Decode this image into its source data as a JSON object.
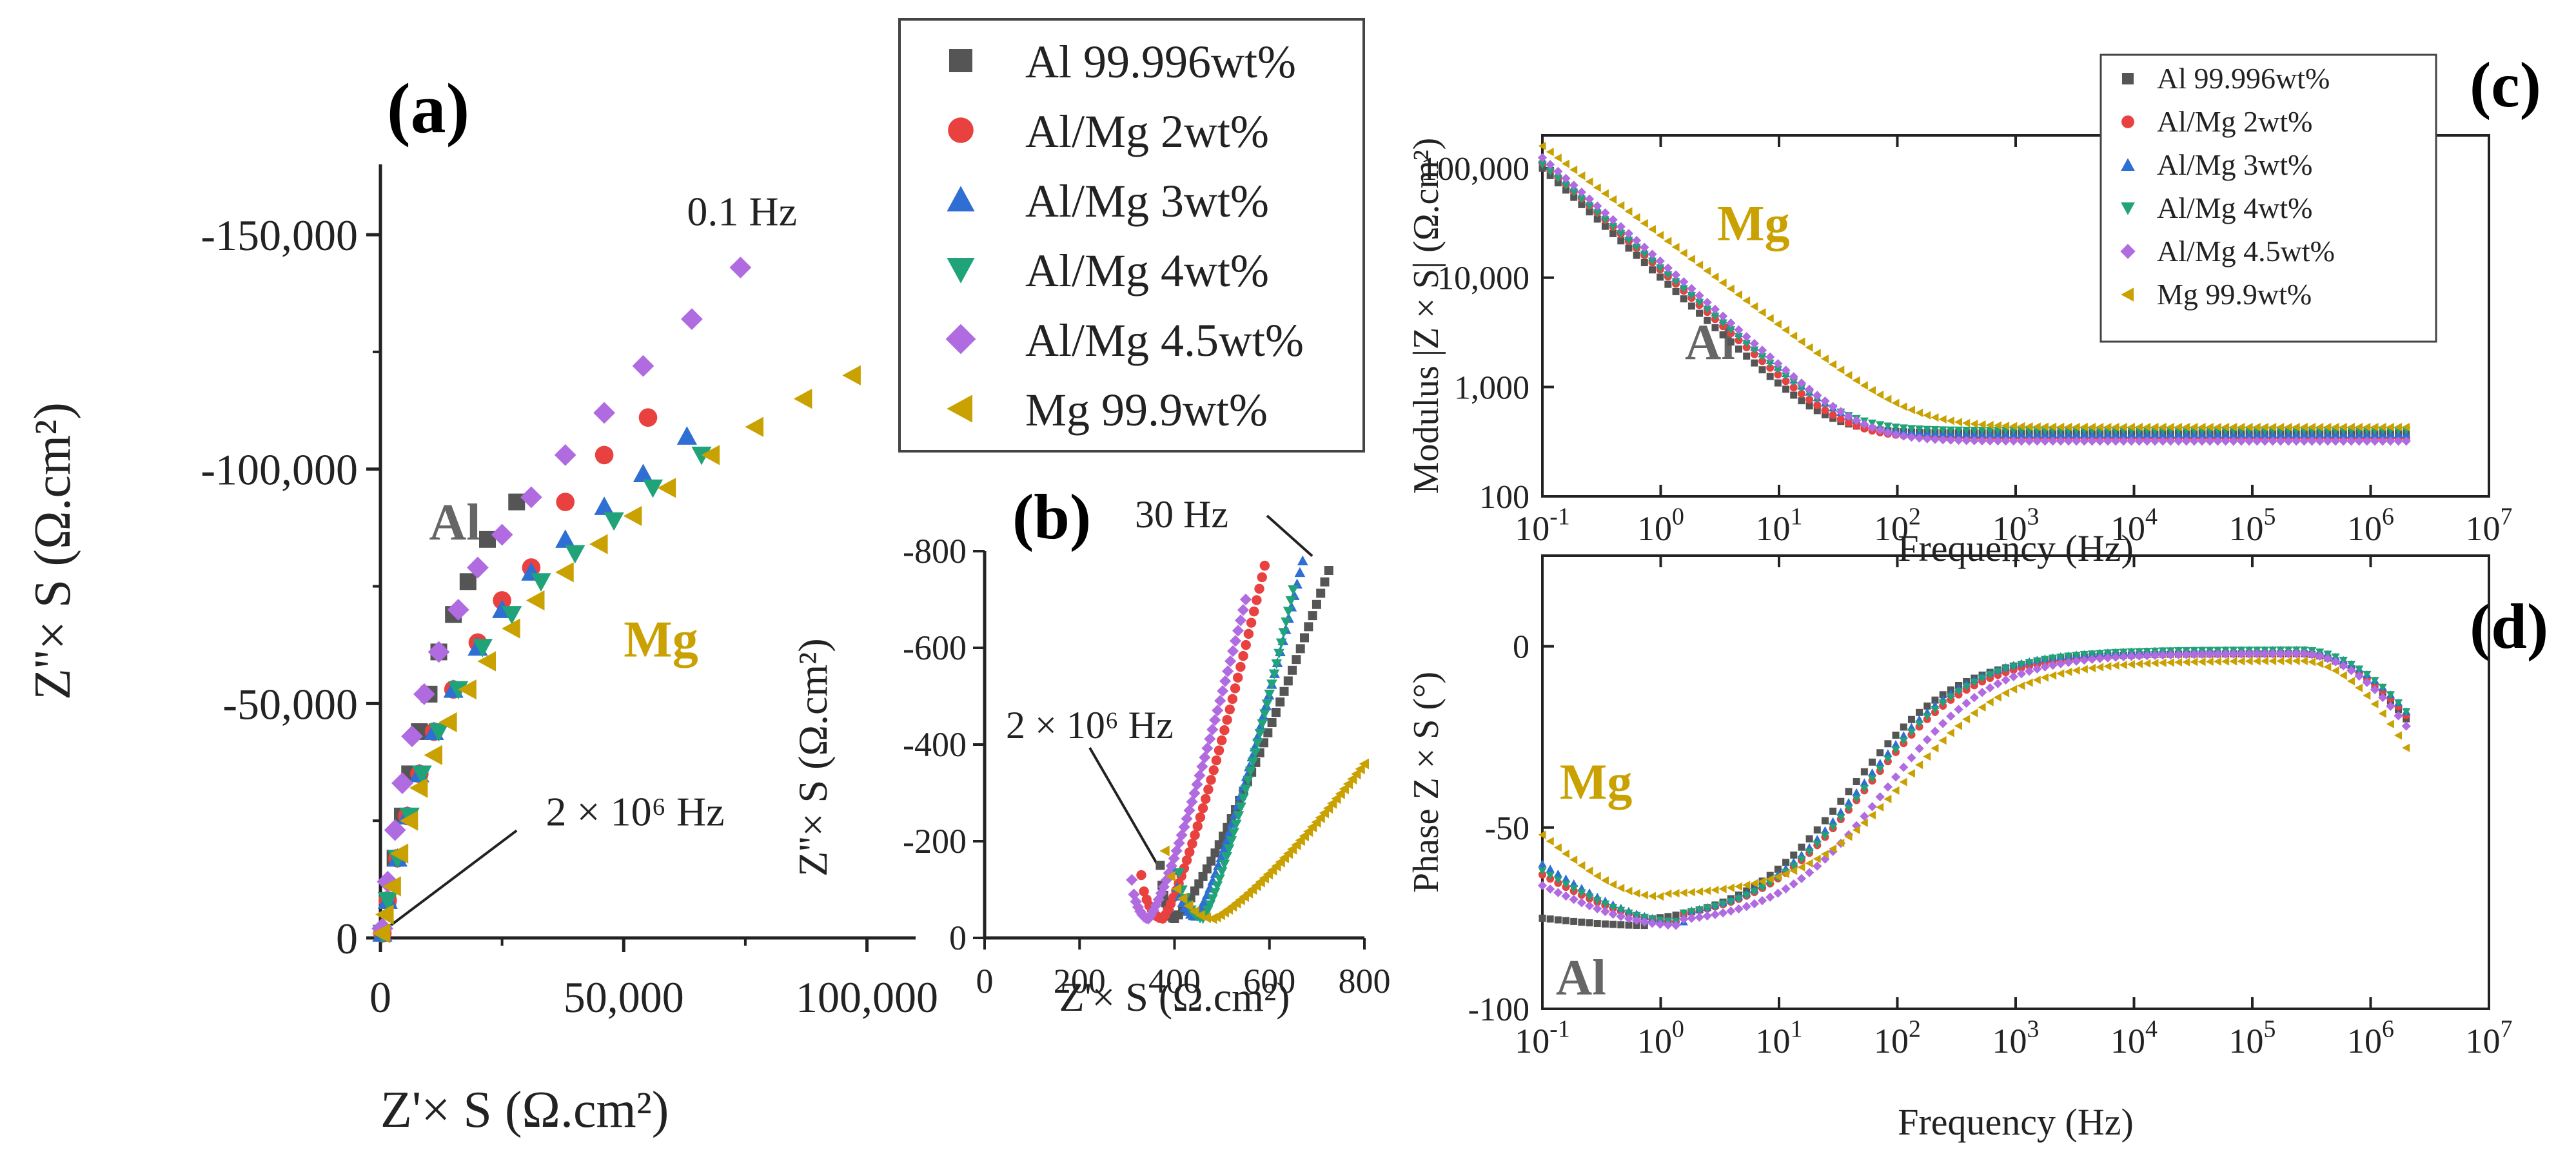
{
  "figure": {
    "legend_main": [
      {
        "label": "Al 99.996wt%",
        "color": "#555555",
        "marker": "square"
      },
      {
        "label": "Al/Mg 2wt%",
        "color": "#e8413f",
        "marker": "circle"
      },
      {
        "label": "Al/Mg 3wt%",
        "color": "#2f6fd3",
        "marker": "triangle-up"
      },
      {
        "label": "Al/Mg 4wt%",
        "color": "#21a37a",
        "marker": "triangle-down"
      },
      {
        "label": "Al/Mg 4.5wt%",
        "color": "#b06be0",
        "marker": "diamond"
      },
      {
        "label": "Mg 99.9wt%",
        "color": "#c9a100",
        "marker": "triangle-left"
      }
    ]
  },
  "chart_data": [
    {
      "panel": "(a)",
      "type": "scatter",
      "xlabel": "Z'× S (Ω.cm²)",
      "ylabel": "Z''× S (Ω.cm²)",
      "xlim": [
        0,
        110000
      ],
      "ylim": [
        0,
        -165000
      ],
      "xticks": [
        {
          "v": 0,
          "t": "0"
        },
        {
          "v": 50000,
          "t": "50,000"
        },
        {
          "v": 100000,
          "t": "100,000"
        }
      ],
      "yticks": [
        {
          "v": 0,
          "t": "0"
        },
        {
          "v": -50000,
          "t": "-50,000"
        },
        {
          "v": -100000,
          "t": "-100,000"
        },
        {
          "v": -150000,
          "t": "-150,000"
        }
      ],
      "annotations": [
        {
          "text": "0.1 Hz",
          "x": 63000,
          "y": -152000
        },
        {
          "text": "2 × 10⁶ Hz",
          "x": 34000,
          "y": -24000
        },
        {
          "text": "Al",
          "x": 10000,
          "y": -85000,
          "color": "#666666"
        },
        {
          "text": "Mg",
          "x": 50000,
          "y": -60000,
          "color": "#c9a100"
        }
      ],
      "series": [
        {
          "name": "Al 99.996wt%",
          "points": [
            [
              28000,
              -93000
            ],
            [
              22000,
              -85000
            ],
            [
              18000,
              -76000
            ],
            [
              15000,
              -69000
            ],
            [
              12000,
              -61000
            ],
            [
              10000,
              -52000
            ],
            [
              8000,
              -44000
            ],
            [
              6000,
              -35000
            ],
            [
              4500,
              -26000
            ],
            [
              3000,
              -17000
            ],
            [
              1500,
              -8000
            ],
            [
              400,
              -1000
            ]
          ]
        },
        {
          "name": "Al/Mg 2wt%",
          "points": [
            [
              55000,
              -111000
            ],
            [
              46000,
              -103000
            ],
            [
              38000,
              -93000
            ],
            [
              31000,
              -79000
            ],
            [
              25000,
              -72000
            ],
            [
              20000,
              -63000
            ],
            [
              15000,
              -53000
            ],
            [
              11000,
              -44000
            ],
            [
              8000,
              -35000
            ],
            [
              5500,
              -26000
            ],
            [
              3500,
              -17000
            ],
            [
              1500,
              -8000
            ],
            [
              400,
              -1000
            ]
          ]
        },
        {
          "name": "Al/Mg 3wt%",
          "points": [
            [
              63000,
              -107000
            ],
            [
              54000,
              -99000
            ],
            [
              46000,
              -92000
            ],
            [
              38000,
              -85000
            ],
            [
              31000,
              -78000
            ],
            [
              25000,
              -70000
            ],
            [
              20000,
              -62000
            ],
            [
              15000,
              -53000
            ],
            [
              11000,
              -44000
            ],
            [
              8000,
              -35000
            ],
            [
              5500,
              -26000
            ],
            [
              3500,
              -17000
            ],
            [
              1500,
              -8000
            ],
            [
              400,
              -1000
            ]
          ]
        },
        {
          "name": "Al/Mg 4wt%",
          "points": [
            [
              66000,
              -103000
            ],
            [
              56000,
              -96000
            ],
            [
              48000,
              -89000
            ],
            [
              40000,
              -82000
            ],
            [
              33000,
              -76000
            ],
            [
              27000,
              -69000
            ],
            [
              21000,
              -62000
            ],
            [
              16000,
              -53000
            ],
            [
              12000,
              -44000
            ],
            [
              8500,
              -35000
            ],
            [
              6000,
              -26000
            ],
            [
              3500,
              -17000
            ],
            [
              1500,
              -8000
            ],
            [
              400,
              -1000
            ]
          ]
        },
        {
          "name": "Al/Mg 4.5wt%",
          "points": [
            [
              74000,
              -143000
            ],
            [
              64000,
              -132000
            ],
            [
              54000,
              -122000
            ],
            [
              46000,
              -112000
            ],
            [
              38000,
              -103000
            ],
            [
              31000,
              -94000
            ],
            [
              25000,
              -86000
            ],
            [
              20000,
              -79000
            ],
            [
              16000,
              -70000
            ],
            [
              12000,
              -61000
            ],
            [
              9000,
              -52000
            ],
            [
              6500,
              -43000
            ],
            [
              4500,
              -33000
            ],
            [
              3000,
              -23000
            ],
            [
              1500,
              -12000
            ],
            [
              400,
              -2000
            ]
          ]
        },
        {
          "name": "Mg 99.9wt%",
          "points": [
            [
              97000,
              -120000
            ],
            [
              87000,
              -115000
            ],
            [
              77000,
              -109000
            ],
            [
              68000,
              -103000
            ],
            [
              59000,
              -96000
            ],
            [
              52000,
              -90000
            ],
            [
              45000,
              -84000
            ],
            [
              38000,
              -78000
            ],
            [
              32000,
              -72000
            ],
            [
              27000,
              -66000
            ],
            [
              22000,
              -59000
            ],
            [
              18000,
              -53000
            ],
            [
              14000,
              -46000
            ],
            [
              11000,
              -39000
            ],
            [
              8000,
              -32000
            ],
            [
              6000,
              -25000
            ],
            [
              4000,
              -18000
            ],
            [
              2500,
              -11000
            ],
            [
              1000,
              -5000
            ],
            [
              300,
              -1000
            ]
          ]
        }
      ]
    },
    {
      "panel": "(b)",
      "type": "scatter",
      "xlabel": "Z'× S (Ω.cm²)",
      "ylabel": "Z''× S (Ω.cm²)",
      "xlim": [
        0,
        800
      ],
      "ylim": [
        0,
        -800
      ],
      "xticks": [
        {
          "v": 0,
          "t": "0"
        },
        {
          "v": 200,
          "t": "200"
        },
        {
          "v": 400,
          "t": "400"
        },
        {
          "v": 600,
          "t": "600"
        },
        {
          "v": 800,
          "t": "800"
        }
      ],
      "yticks": [
        {
          "v": 0,
          "t": "0"
        },
        {
          "v": -200,
          "t": "-200"
        },
        {
          "v": -400,
          "t": "-400"
        },
        {
          "v": -600,
          "t": "-600"
        },
        {
          "v": -800,
          "t": "-800"
        }
      ],
      "annotations": [
        {
          "text": "30 Hz",
          "x": 560,
          "y": -840
        },
        {
          "text": "2 × 10⁶ Hz",
          "x": 80,
          "y": -370
        }
      ],
      "series": [
        {
          "name": "Al 99.996wt%",
          "start": [
            370,
            -150
          ],
          "min": [
            400,
            -40
          ],
          "end": [
            725,
            -760
          ]
        },
        {
          "name": "Al/Mg 2wt%",
          "start": [
            330,
            -130
          ],
          "min": [
            375,
            -40
          ],
          "end": [
            590,
            -770
          ]
        },
        {
          "name": "Al/Mg 3wt%",
          "start": [
            400,
            -140
          ],
          "min": [
            445,
            -45
          ],
          "end": [
            670,
            -780
          ]
        },
        {
          "name": "Al/Mg 4wt%",
          "start": [
            410,
            -135
          ],
          "min": [
            460,
            -40
          ],
          "end": [
            650,
            -720
          ]
        },
        {
          "name": "Al/Mg 4.5wt%",
          "start": [
            310,
            -120
          ],
          "min": [
            345,
            -40
          ],
          "end": [
            550,
            -700
          ]
        },
        {
          "name": "Mg 99.9wt%",
          "start": [
            380,
            -180
          ],
          "min": [
            480,
            -40
          ],
          "end": [
            800,
            -360
          ]
        }
      ]
    },
    {
      "panel": "(c)",
      "type": "line",
      "xlabel": "Frequency (Hz)",
      "ylabel": "Modulus |Z × S| (Ω.cm²)",
      "x_scale": "log",
      "y_scale": "log",
      "xlim": [
        0.1,
        10000000
      ],
      "ylim": [
        100,
        200000
      ],
      "xticks": [
        {
          "v": 0.1,
          "t": "10⁻¹"
        },
        {
          "v": 1,
          "t": "10⁰"
        },
        {
          "v": 10,
          "t": "10¹"
        },
        {
          "v": 100,
          "t": "10²"
        },
        {
          "v": 1000,
          "t": "10³"
        },
        {
          "v": 10000,
          "t": "10⁴"
        },
        {
          "v": 100000,
          "t": "10⁵"
        },
        {
          "v": 1000000,
          "t": "10⁶"
        },
        {
          "v": 10000000,
          "t": "10⁷"
        }
      ],
      "yticks": [
        {
          "v": 100,
          "t": "100"
        },
        {
          "v": 1000,
          "t": "1,000"
        },
        {
          "v": 10000,
          "t": "10,000"
        },
        {
          "v": 100000,
          "t": "100,000"
        }
      ],
      "annotations": [
        {
          "text": "Mg",
          "x": 3,
          "y": 22000,
          "color": "#c9a100"
        },
        {
          "text": "Al",
          "x": 1.6,
          "y": 1800,
          "color": "#666666"
        }
      ],
      "series": [
        {
          "name": "Al 99.996wt%",
          "R0": 100000,
          "s": 1.0,
          "f0": 0.0,
          "R_inf": 380
        },
        {
          "name": "Al/Mg 2wt%",
          "R0": 112000,
          "s": 0.98,
          "f0": 0.0,
          "R_inf": 340
        },
        {
          "name": "Al/Mg 3wt%",
          "R0": 120000,
          "s": 0.96,
          "f0": 0.0,
          "R_inf": 370
        },
        {
          "name": "Al/Mg 4wt%",
          "R0": 108000,
          "s": 0.95,
          "f0": 0.0,
          "R_inf": 400
        },
        {
          "name": "Al/Mg 4.5wt%",
          "R0": 125000,
          "s": 0.95,
          "f0": 0.0,
          "R_inf": 320
        },
        {
          "name": "Mg 99.9wt%",
          "R0": 160000,
          "s": 0.82,
          "f0": 0.0,
          "R_inf": 430
        }
      ]
    },
    {
      "panel": "(d)",
      "type": "line",
      "xlabel": "Frequency (Hz)",
      "ylabel": "Phase Z × S (°)",
      "x_scale": "log",
      "xlim": [
        0.1,
        10000000
      ],
      "ylim": [
        -100,
        25
      ],
      "xticks": [
        {
          "v": 0.1,
          "t": "10⁻¹"
        },
        {
          "v": 1,
          "t": "10⁰"
        },
        {
          "v": 10,
          "t": "10¹"
        },
        {
          "v": 100,
          "t": "10²"
        },
        {
          "v": 1000,
          "t": "10³"
        },
        {
          "v": 10000,
          "t": "10⁴"
        },
        {
          "v": 100000,
          "t": "10⁵"
        },
        {
          "v": 1000000,
          "t": "10⁶"
        },
        {
          "v": 10000000,
          "t": "10⁷"
        }
      ],
      "yticks": [
        {
          "v": -100,
          "t": "-100"
        },
        {
          "v": -50,
          "t": "-50"
        },
        {
          "v": 0,
          "t": "0"
        }
      ],
      "annotations": [
        {
          "text": "Mg",
          "x": 0.14,
          "y": -42,
          "color": "#c9a100"
        },
        {
          "text": "Al",
          "x": 0.13,
          "y": -96,
          "color": "#666666"
        }
      ],
      "series": [
        {
          "name": "Al 99.996wt%",
          "low": -75,
          "dip": -77,
          "dip_f": 0.8,
          "rise_f": 40,
          "plateau": -2,
          "end": -20
        },
        {
          "name": "Al/Mg 2wt%",
          "low": -63,
          "dip": -76,
          "dip_f": 1.5,
          "rise_f": 55,
          "plateau": -2,
          "end": -19
        },
        {
          "name": "Al/Mg 3wt%",
          "low": -60,
          "dip": -76,
          "dip_f": 1.6,
          "rise_f": 50,
          "plateau": -1,
          "end": -18
        },
        {
          "name": "Al/Mg 4wt%",
          "low": -62,
          "dip": -76,
          "dip_f": 1.5,
          "rise_f": 55,
          "plateau": -1,
          "end": -18
        },
        {
          "name": "Al/Mg 4.5wt%",
          "low": -66,
          "dip": -77,
          "dip_f": 1.5,
          "rise_f": 80,
          "plateau": -2,
          "end": -22
        },
        {
          "name": "Mg 99.9wt%",
          "low": -52,
          "dip": -69,
          "dip_f": 1.0,
          "rise_f": 120,
          "plateau": -4,
          "end": -28
        }
      ]
    }
  ]
}
